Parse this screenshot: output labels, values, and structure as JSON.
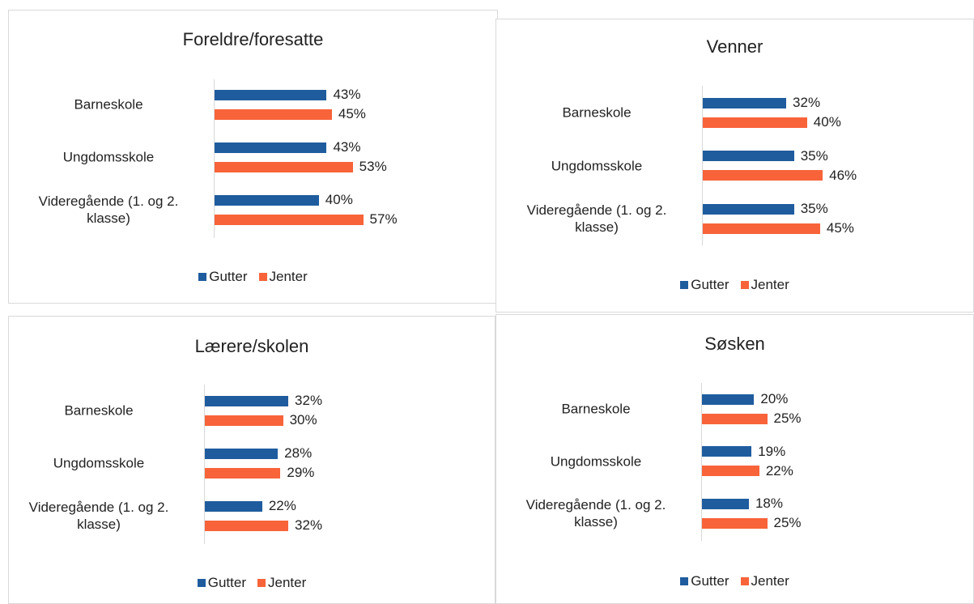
{
  "chart_data": [
    {
      "type": "bar",
      "orientation": "horizontal",
      "title": "Foreldre/foresatte",
      "categories": [
        "Barneskole",
        "Ungdomsskole",
        "Videregående (1. og 2. klasse)"
      ],
      "series": [
        {
          "name": "Gutter",
          "color": "#1f5c9e",
          "values": [
            43,
            43,
            40
          ],
          "value_labels": [
            "43%",
            "43%",
            "40%"
          ]
        },
        {
          "name": "Jenter",
          "color": "#f8633a",
          "values": [
            45,
            53,
            57
          ],
          "value_labels": [
            "45%",
            "53%",
            "57%"
          ]
        }
      ]
    },
    {
      "type": "bar",
      "orientation": "horizontal",
      "title": "Venner",
      "categories": [
        "Barneskole",
        "Ungdomsskole",
        "Videregående (1. og 2. klasse)"
      ],
      "series": [
        {
          "name": "Gutter",
          "color": "#1f5c9e",
          "values": [
            32,
            35,
            35
          ],
          "value_labels": [
            "32%",
            "35%",
            "35%"
          ]
        },
        {
          "name": "Jenter",
          "color": "#f8633a",
          "values": [
            40,
            46,
            45
          ],
          "value_labels": [
            "40%",
            "46%",
            "45%"
          ]
        }
      ]
    },
    {
      "type": "bar",
      "orientation": "horizontal",
      "title": "Lærere/skolen",
      "categories": [
        "Barneskole",
        "Ungdomsskole",
        "Videregående (1. og 2. klasse)"
      ],
      "series": [
        {
          "name": "Gutter",
          "color": "#1f5c9e",
          "values": [
            32,
            28,
            22
          ],
          "value_labels": [
            "32%",
            "28%",
            "22%"
          ]
        },
        {
          "name": "Jenter",
          "color": "#f8633a",
          "values": [
            30,
            29,
            32
          ],
          "value_labels": [
            "30%",
            "29%",
            "32%"
          ]
        }
      ]
    },
    {
      "type": "bar",
      "orientation": "horizontal",
      "title": "Søsken",
      "categories": [
        "Barneskole",
        "Ungdomsskole",
        "Videregående (1. og 2. klasse)"
      ],
      "series": [
        {
          "name": "Gutter",
          "color": "#1f5c9e",
          "values": [
            20,
            19,
            18
          ],
          "value_labels": [
            "20%",
            "19%",
            "18%"
          ]
        },
        {
          "name": "Jenter",
          "color": "#f8633a",
          "values": [
            25,
            22,
            25
          ],
          "value_labels": [
            "25%",
            "22%",
            "25%"
          ]
        }
      ]
    }
  ]
}
